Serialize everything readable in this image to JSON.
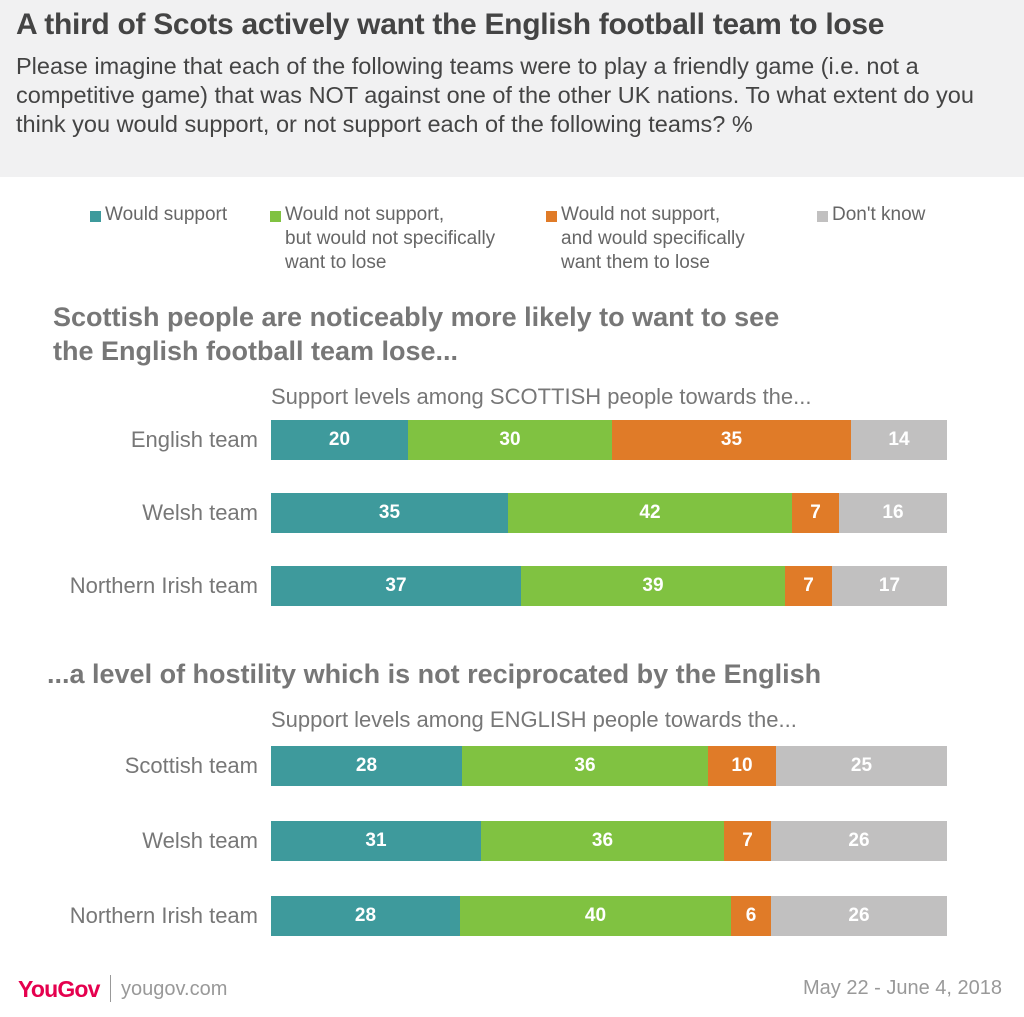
{
  "title": "A third of Scots actively want the English football team to lose",
  "subtitle": "Please imagine that each of the following teams were to play a friendly game (i.e. not a competitive game) that was NOT against one of the other UK nations. To what extent do you think you would support, or not support each of the following teams? %",
  "legend": [
    {
      "lines": [
        "Would support"
      ],
      "color": "#3e9a9c"
    },
    {
      "lines": [
        "Would not support,",
        "but would not specifically",
        "want to lose"
      ],
      "color": "#80c241"
    },
    {
      "lines": [
        "Would not support,",
        "and would specifically",
        "want them to lose"
      ],
      "color": "#e07b28"
    },
    {
      "lines": [
        "Don't know"
      ],
      "color": "#c1c0c0"
    }
  ],
  "chart_data": [
    {
      "type": "bar",
      "orientation": "horizontal",
      "stacked": true,
      "title": "Scottish people are noticeably more likely to want to see the English football team lose...",
      "title_lines": [
        "Scottish people are noticeably more likely to want to see",
        "the English football team lose..."
      ],
      "caption": "Support levels among SCOTTISH people towards the...",
      "categories": [
        "English team",
        "Welsh team",
        "Northern Irish team"
      ],
      "series": [
        {
          "name": "Would support",
          "values": [
            20,
            35,
            37
          ]
        },
        {
          "name": "Would not support, but would not specifically want to lose",
          "values": [
            30,
            42,
            39
          ]
        },
        {
          "name": "Would not support, and would specifically want them to lose",
          "values": [
            35,
            7,
            7
          ]
        },
        {
          "name": "Don't know",
          "values": [
            14,
            16,
            17
          ]
        }
      ]
    },
    {
      "type": "bar",
      "orientation": "horizontal",
      "stacked": true,
      "title": "...a level of hostility which is not reciprocated by the English",
      "title_lines": [
        "...a level of hostility which is not reciprocated by the English"
      ],
      "caption": "Support levels among ENGLISH people towards the...",
      "categories": [
        "Scottish team",
        "Welsh team",
        "Northern Irish team"
      ],
      "series": [
        {
          "name": "Would support",
          "values": [
            28,
            31,
            28
          ]
        },
        {
          "name": "Would not support, but would not specifically want to lose",
          "values": [
            36,
            36,
            40
          ]
        },
        {
          "name": "Would not support, and would specifically want them to lose",
          "values": [
            10,
            7,
            6
          ]
        },
        {
          "name": "Don't know",
          "values": [
            25,
            26,
            26
          ]
        }
      ]
    }
  ],
  "footer": {
    "logo": "YouGov",
    "url": "yougov.com",
    "date": "May 22 - June 4, 2018"
  }
}
